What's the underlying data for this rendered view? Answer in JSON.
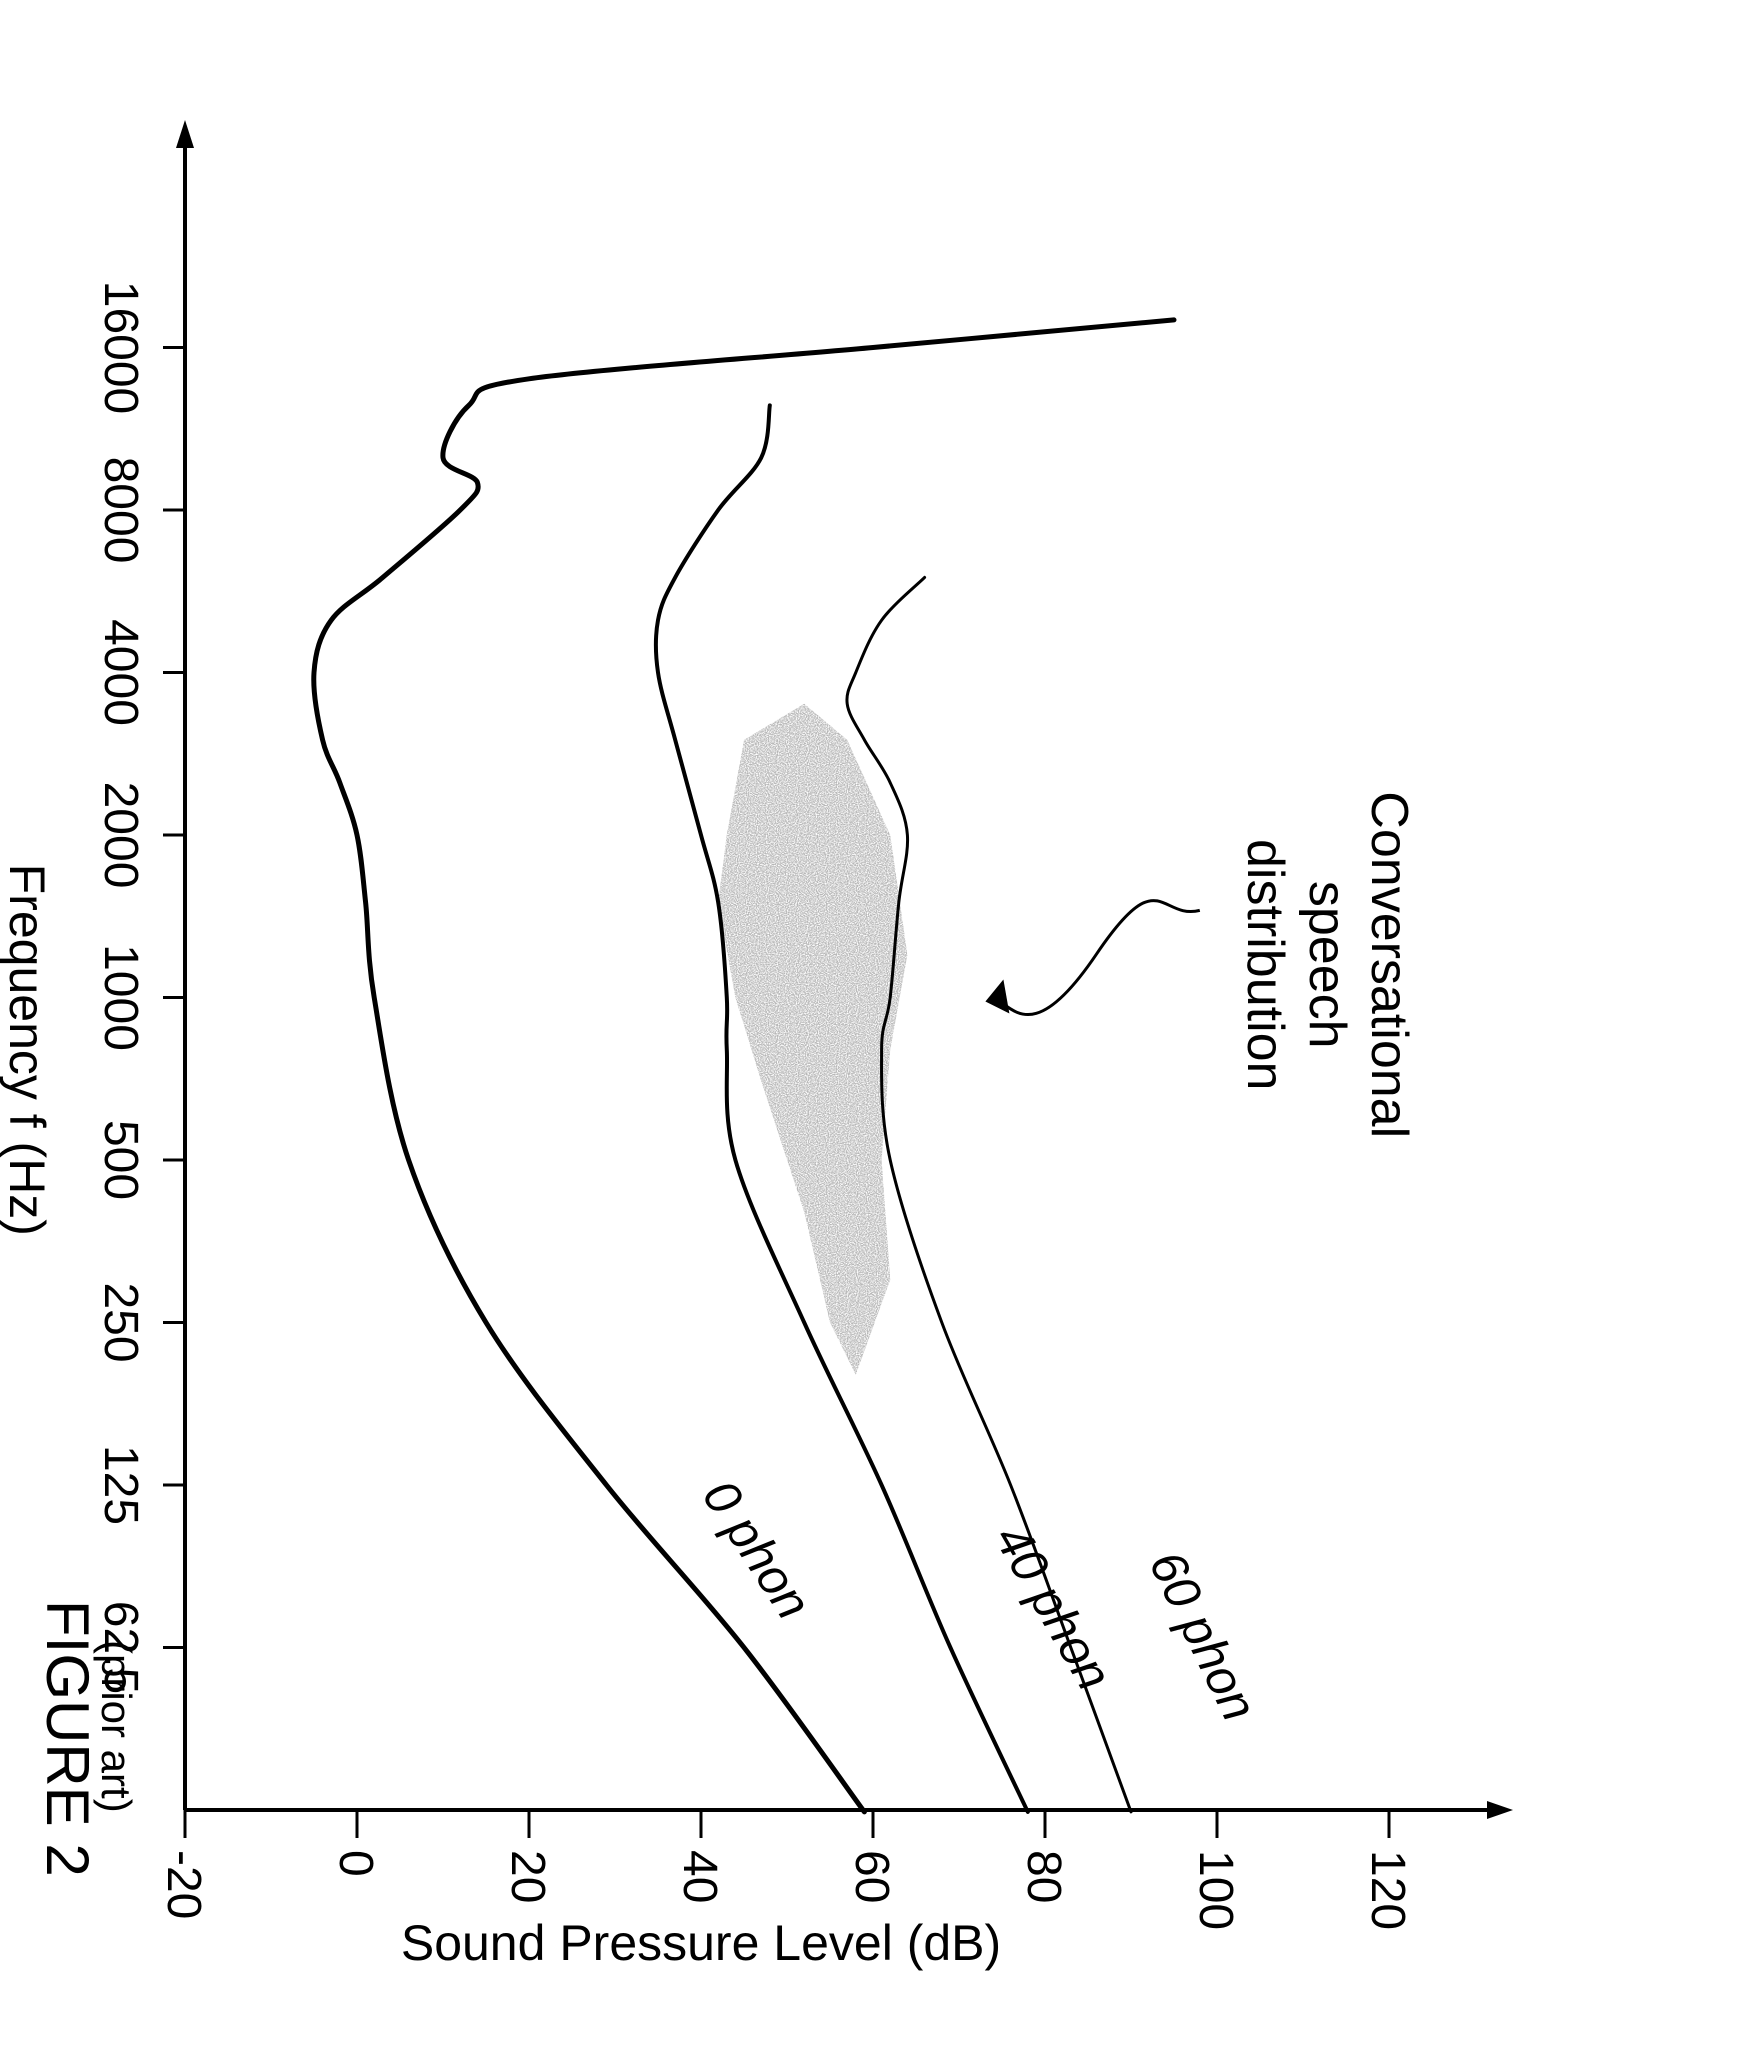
{
  "figure": {
    "title": "FIGURE 2",
    "subtitle": "(prior art)"
  },
  "chart_data": {
    "type": "line",
    "xlabel": "Frequency f (Hz)",
    "ylabel": "Sound Pressure Level (dB)",
    "x_scale": "log",
    "x_ticks": [
      "62.5",
      "125",
      "250",
      "500",
      "1000",
      "2000",
      "4000",
      "8000",
      "16000"
    ],
    "y_ticks": [
      "-20",
      "0",
      "20",
      "40",
      "60",
      "80",
      "100",
      "120"
    ],
    "ylim": [
      -20,
      130
    ],
    "grid": false,
    "series": [
      {
        "name": "60 phon",
        "x": [
          31,
          62.5,
          125,
          250,
          500,
          800,
          1000,
          1500,
          2000,
          2500,
          3000,
          3500,
          4000,
          5000,
          6000
        ],
        "y": [
          90,
          83,
          76,
          68,
          62,
          61,
          62,
          63,
          64,
          62,
          59,
          57,
          58,
          61,
          66
        ]
      },
      {
        "name": "40 phon",
        "x": [
          31,
          62.5,
          125,
          250,
          500,
          800,
          1000,
          1500,
          2000,
          3000,
          4000,
          5000,
          6000,
          8000,
          10000,
          12500
        ],
        "y": [
          78,
          69,
          61,
          52,
          44,
          43,
          43,
          42,
          40,
          37,
          35,
          35,
          37,
          42,
          47,
          48
        ]
      },
      {
        "name": "0 phon",
        "x": [
          31,
          62.5,
          125,
          250,
          500,
          1000,
          1500,
          2000,
          2500,
          3000,
          4000,
          5000,
          6000,
          8000,
          9000,
          10000,
          12500,
          14000,
          16000,
          18000
        ],
        "y": [
          59,
          45,
          29,
          15,
          6,
          2,
          1,
          0,
          -2,
          -4,
          -5,
          -3,
          3,
          12,
          14,
          10,
          13,
          20,
          60,
          95
        ]
      }
    ],
    "annotations": [
      {
        "text": "Conversational speech distribution",
        "lines": [
          "Conversational",
          "speech",
          "distribution"
        ]
      }
    ],
    "shaded_region": {
      "name": "Conversational speech distribution",
      "x_range": [
        200,
        3500
      ],
      "y_range": [
        40,
        65
      ]
    }
  }
}
